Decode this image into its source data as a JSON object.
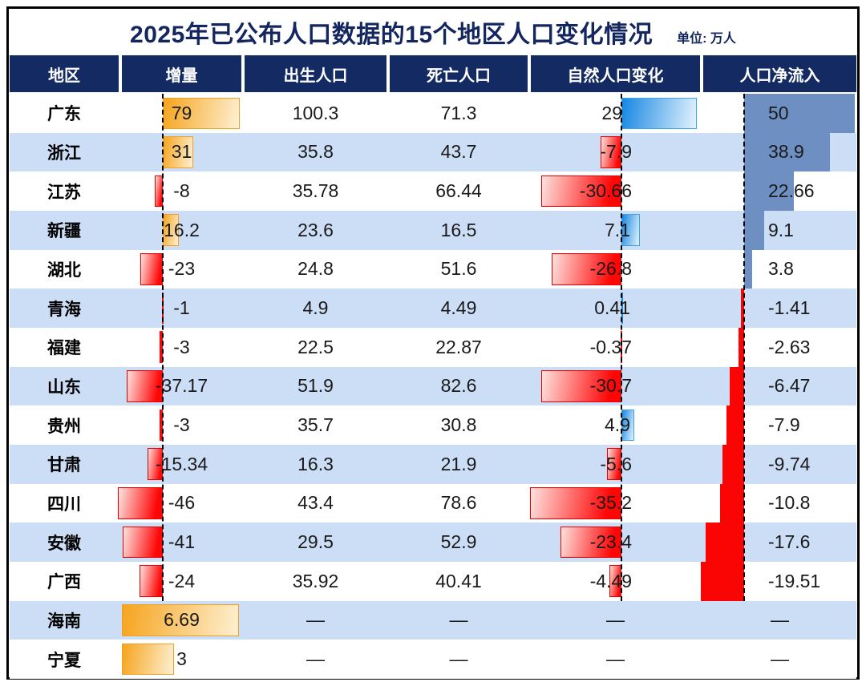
{
  "title": "2025年已公布人口数据的15个地区人口变化情况",
  "unit_label": "单位: 万人",
  "missing_value_symbol": "—",
  "columns": [
    {
      "key": "region",
      "label": "地区"
    },
    {
      "key": "increment",
      "label": "增量"
    },
    {
      "key": "births",
      "label": "出生人口"
    },
    {
      "key": "deaths",
      "label": "死亡人口"
    },
    {
      "key": "natural_change",
      "label": "自然人口变化"
    },
    {
      "key": "net_inflow",
      "label": "人口净流入"
    }
  ],
  "rows": [
    {
      "region": "广东",
      "increment": "79",
      "births": "100.3",
      "deaths": "71.3",
      "natural_change": "29",
      "net_inflow": "50"
    },
    {
      "region": "浙江",
      "increment": "31",
      "births": "35.8",
      "deaths": "43.7",
      "natural_change": "-7.9",
      "net_inflow": "38.9"
    },
    {
      "region": "江苏",
      "increment": "-8",
      "births": "35.78",
      "deaths": "66.44",
      "natural_change": "-30.66",
      "net_inflow": "22.66"
    },
    {
      "region": "新疆",
      "increment": "16.2",
      "births": "23.6",
      "deaths": "16.5",
      "natural_change": "7.1",
      "net_inflow": "9.1"
    },
    {
      "region": "湖北",
      "increment": "-23",
      "births": "24.8",
      "deaths": "51.6",
      "natural_change": "-26.8",
      "net_inflow": "3.8"
    },
    {
      "region": "青海",
      "increment": "-1",
      "births": "4.9",
      "deaths": "4.49",
      "natural_change": "0.41",
      "net_inflow": "-1.41"
    },
    {
      "region": "福建",
      "increment": "-3",
      "births": "22.5",
      "deaths": "22.87",
      "natural_change": "-0.37",
      "net_inflow": "-2.63"
    },
    {
      "region": "山东",
      "increment": "-37.17",
      "births": "51.9",
      "deaths": "82.6",
      "natural_change": "-30.7",
      "net_inflow": "-6.47"
    },
    {
      "region": "贵州",
      "increment": "-3",
      "births": "35.7",
      "deaths": "30.8",
      "natural_change": "4.9",
      "net_inflow": "-7.9"
    },
    {
      "region": "甘肃",
      "increment": "-15.34",
      "births": "16.3",
      "deaths": "21.9",
      "natural_change": "-5.6",
      "net_inflow": "-9.74"
    },
    {
      "region": "四川",
      "increment": "-46",
      "births": "43.4",
      "deaths": "78.6",
      "natural_change": "-35.2",
      "net_inflow": "-10.8"
    },
    {
      "region": "安徽",
      "increment": "-41",
      "births": "29.5",
      "deaths": "52.9",
      "natural_change": "-23.4",
      "net_inflow": "-17.6"
    },
    {
      "region": "广西",
      "increment": "-24",
      "births": "35.92",
      "deaths": "40.41",
      "natural_change": "-4.49",
      "net_inflow": "-19.51"
    },
    {
      "region": "海南",
      "increment": "6.69",
      "births": null,
      "deaths": null,
      "natural_change": null,
      "net_inflow": null
    },
    {
      "region": "宁夏",
      "increment": "3",
      "births": null,
      "deaths": null,
      "natural_change": null,
      "net_inflow": null
    }
  ],
  "colors": {
    "title_navy": "#13265F",
    "header_navy": "#132A63",
    "stripe_blue": "#CCDDF6",
    "row_white": "#FFFFFF",
    "positive_orange_dark": "#F6A41D",
    "positive_orange_light": "#FEF0D2",
    "orange_border": "#F0A027",
    "negative_red_bright": "#FF0606",
    "negative_red_light": "#FDE2DE",
    "red_border": "#E80000",
    "natural_blue_dark": "#1787E2",
    "natural_blue_light": "#E3F3FD",
    "blue_border": "#3FA3E8",
    "net_positive_steel": "#6E8FC2",
    "net_negative_red": "#FB0404"
  },
  "chart_data": {
    "type": "bar",
    "title": "2025年已公布人口数据的15个地区人口变化情况",
    "unit": "万人",
    "orientation": "horizontal",
    "grid": false,
    "legend_position": "none",
    "categories": [
      "广东",
      "浙江",
      "江苏",
      "新疆",
      "湖北",
      "青海",
      "福建",
      "山东",
      "贵州",
      "甘肃",
      "四川",
      "安徽",
      "广西",
      "海南",
      "宁夏"
    ],
    "series": [
      {
        "name": "增量",
        "bar": true,
        "values": [
          79,
          31,
          -8,
          16.2,
          -23,
          -1,
          -3,
          -37.17,
          -3,
          -15.34,
          -46,
          -41,
          -24,
          6.69,
          3
        ]
      },
      {
        "name": "出生人口",
        "bar": false,
        "values": [
          100.3,
          35.8,
          35.78,
          23.6,
          24.8,
          4.9,
          22.5,
          51.9,
          35.7,
          16.3,
          43.4,
          29.5,
          35.92,
          null,
          null
        ]
      },
      {
        "name": "死亡人口",
        "bar": false,
        "values": [
          71.3,
          43.7,
          66.44,
          16.5,
          51.6,
          4.49,
          22.87,
          82.6,
          30.8,
          21.9,
          78.6,
          52.9,
          40.41,
          null,
          null
        ]
      },
      {
        "name": "自然人口变化",
        "bar": true,
        "values": [
          29,
          -7.9,
          -30.66,
          7.1,
          -26.8,
          0.41,
          -0.37,
          -30.7,
          4.9,
          -5.6,
          -35.2,
          -23.4,
          -4.49,
          null,
          null
        ]
      },
      {
        "name": "人口净流入",
        "bar": true,
        "values": [
          50,
          38.9,
          22.66,
          9.1,
          3.8,
          -1.41,
          -2.63,
          -6.47,
          -7.9,
          -9.74,
          -10.8,
          -17.6,
          -19.51,
          null,
          null
        ]
      }
    ],
    "bar_color_rules": {
      "增量_positive": "orange gradient",
      "增量_negative": "red gradient",
      "自然人口变化_positive": "blue gradient",
      "自然人口变化_negative": "red gradient",
      "人口净流入_positive": "steel blue flat",
      "人口净流入_negative": "red flat"
    }
  }
}
